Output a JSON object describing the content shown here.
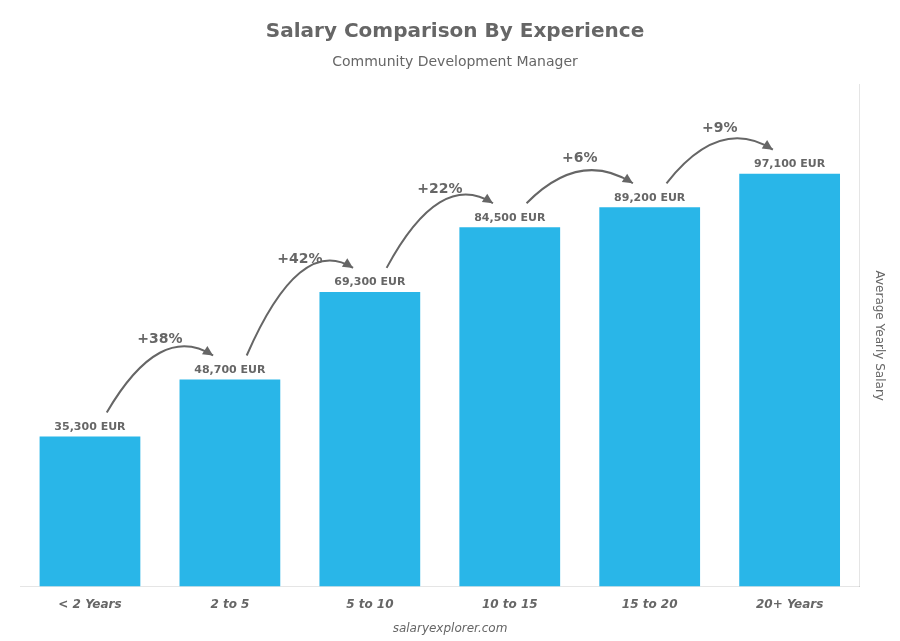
{
  "chart_data": {
    "type": "bar",
    "title": "Salary Comparison By Experience",
    "subtitle": "Community Development Manager",
    "categories": [
      "< 2 Years",
      "2 to 5",
      "5 to 10",
      "10 to 15",
      "15 to 20",
      "20+ Years"
    ],
    "values": [
      35300,
      48700,
      69300,
      84500,
      89200,
      97100
    ],
    "value_labels": [
      "35,300 EUR",
      "48,700 EUR",
      "69,300 EUR",
      "84,500 EUR",
      "89,200 EUR",
      "97,100 EUR"
    ],
    "data_labels": true,
    "color": "#29b6e8",
    "ylabel": "Average Yearly Salary",
    "ylim": [
      0,
      118000
    ],
    "tick_labels": "x",
    "grid": false,
    "annotations": [
      {
        "category": "2 to 5",
        "text": "+38%"
      },
      {
        "category": "5 to 10",
        "text": "+42%"
      },
      {
        "category": "10 to 15",
        "text": "+22%"
      },
      {
        "category": "15 to 20",
        "text": "+6%"
      },
      {
        "category": "20+ Years",
        "text": "+9%"
      }
    ],
    "footer": "salaryexplorer.com"
  }
}
